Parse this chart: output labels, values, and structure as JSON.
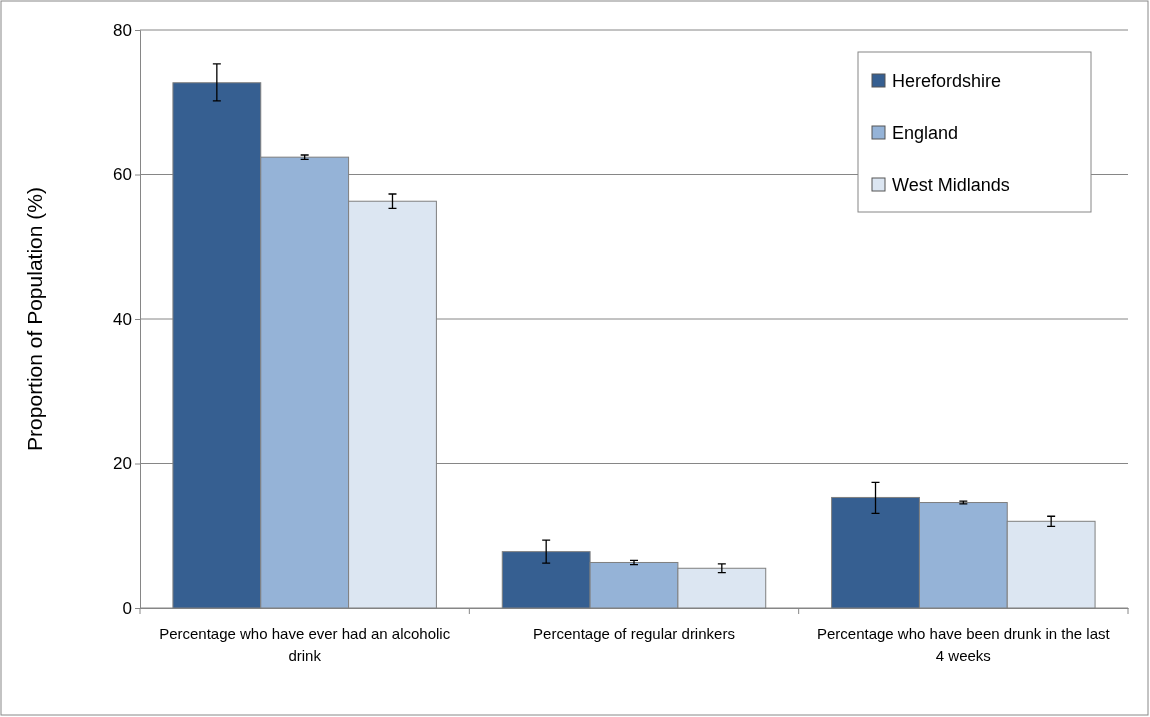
{
  "chart_data": {
    "type": "bar",
    "ylabel": "Proportion of Population (%)",
    "categories": [
      "Percentage who have ever had an alcoholic drink",
      "Percentage of regular drinkers",
      "Percentage who have been drunk in the last 4 weeks"
    ],
    "series": [
      {
        "name": "Herefordshire",
        "color": "#365f91",
        "values": [
          72.7,
          7.8,
          15.3
        ],
        "errors": [
          [
            70.2,
            75.3
          ],
          [
            6.2,
            9.4
          ],
          [
            13.1,
            17.4
          ]
        ]
      },
      {
        "name": "England",
        "color": "#95b3d7",
        "values": [
          62.4,
          6.3,
          14.6
        ],
        "errors": [
          [
            62.1,
            62.7
          ],
          [
            6.0,
            6.6
          ],
          [
            14.4,
            14.8
          ]
        ]
      },
      {
        "name": "West Midlands",
        "color": "#dce6f2",
        "values": [
          56.3,
          5.5,
          12.0
        ],
        "errors": [
          [
            55.3,
            57.3
          ],
          [
            4.9,
            6.1
          ],
          [
            11.3,
            12.7
          ]
        ]
      }
    ],
    "ylim": [
      0,
      80
    ],
    "yticks": [
      0,
      20,
      40,
      60,
      80
    ],
    "grid": "y",
    "legend": "top right"
  }
}
